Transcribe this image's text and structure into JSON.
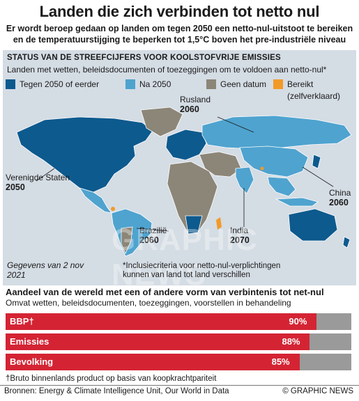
{
  "title": "Landen die zich verbinden tot netto nul",
  "subtitle": "Er wordt beroep gedaan op landen om tegen 2050 een netto-nul-uitstoot te bereiken en de temperatuurstijging te beperken tot 1,5°C boven het pre-industriële niveau",
  "status_section": {
    "heading": "STATUS VAN DE STREEFCIJFERS VOOR KOOLSTOFVRIJE EMISSIES",
    "subheading": "Landen met wetten, beleidsdocumenten of toezeggingen om te voldoen aan netto-nul*"
  },
  "legend": [
    {
      "label": "Tegen 2050 of eerder",
      "color": "#0d5a8e"
    },
    {
      "label": "Na 2050",
      "color": "#4fa3cf"
    },
    {
      "label": "Geen datum",
      "color": "#8c8678"
    },
    {
      "label": "Bereikt",
      "sublabel": "(zelfverklaard)",
      "color": "#f29a28"
    }
  ],
  "callouts": [
    {
      "name": "Verenigde Staten",
      "year": "2050"
    },
    {
      "name": "Rusland",
      "year": "2060"
    },
    {
      "name": "China",
      "year": "2060"
    },
    {
      "name": "Brazilië",
      "year": "2060"
    },
    {
      "name": "India",
      "year": "2070"
    }
  ],
  "date_note": "Gegevens van 2 nov 2021",
  "criteria_note": "*Inclusiecriteria voor netto-nul-verplichtingen kunnen van land tot land verschillen",
  "watermark": "GRAPHIC NEWS",
  "share_section": {
    "heading": "Aandeel van de wereld met een of andere vorm van verbintenis tot net-nul",
    "subheading": "Omvat wetten, beleidsdocumenten, toezeggingen, voorstellen in behandeling",
    "bars": [
      {
        "label": "BBP†",
        "value": 90,
        "value_label": "90%"
      },
      {
        "label": "Emissies",
        "value": 88,
        "value_label": "88%"
      },
      {
        "label": "Bevolking",
        "value": 85,
        "value_label": "85%"
      }
    ]
  },
  "gdp_note": "†Bruto binnenlands product op basis van koopkrachtpariteit",
  "sources": "Bronnen: Energy & Climate Intelligence Unit, Our World in Data",
  "credit": "© GRAPHIC NEWS"
}
